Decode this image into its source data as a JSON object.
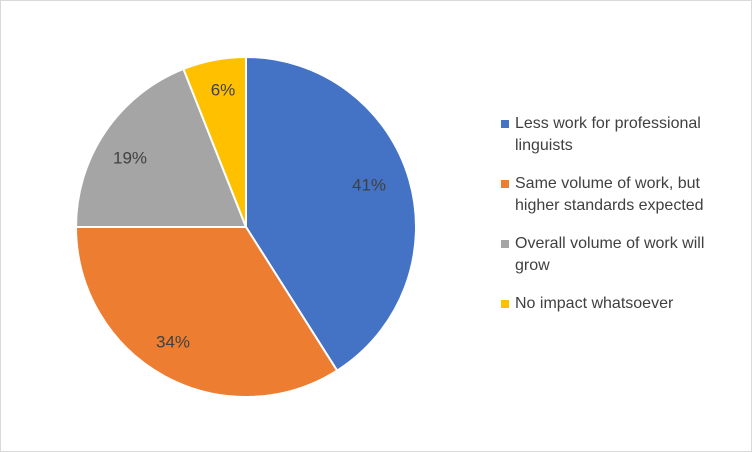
{
  "chart_data": {
    "type": "pie",
    "title": "",
    "categories": [
      "Less work for professional linguists",
      "Same volume of work, but higher standards expected",
      "Overall volume of work will grow",
      "No impact whatsoever"
    ],
    "values": [
      41,
      34,
      19,
      6
    ],
    "labels": [
      "41%",
      "34%",
      "19%",
      "6%"
    ],
    "colors": [
      "#4472c4",
      "#ed7d31",
      "#a5a5a5",
      "#ffc000"
    ],
    "start_angle": "12 o'clock",
    "direction": "clockwise",
    "legend_position": "right"
  }
}
